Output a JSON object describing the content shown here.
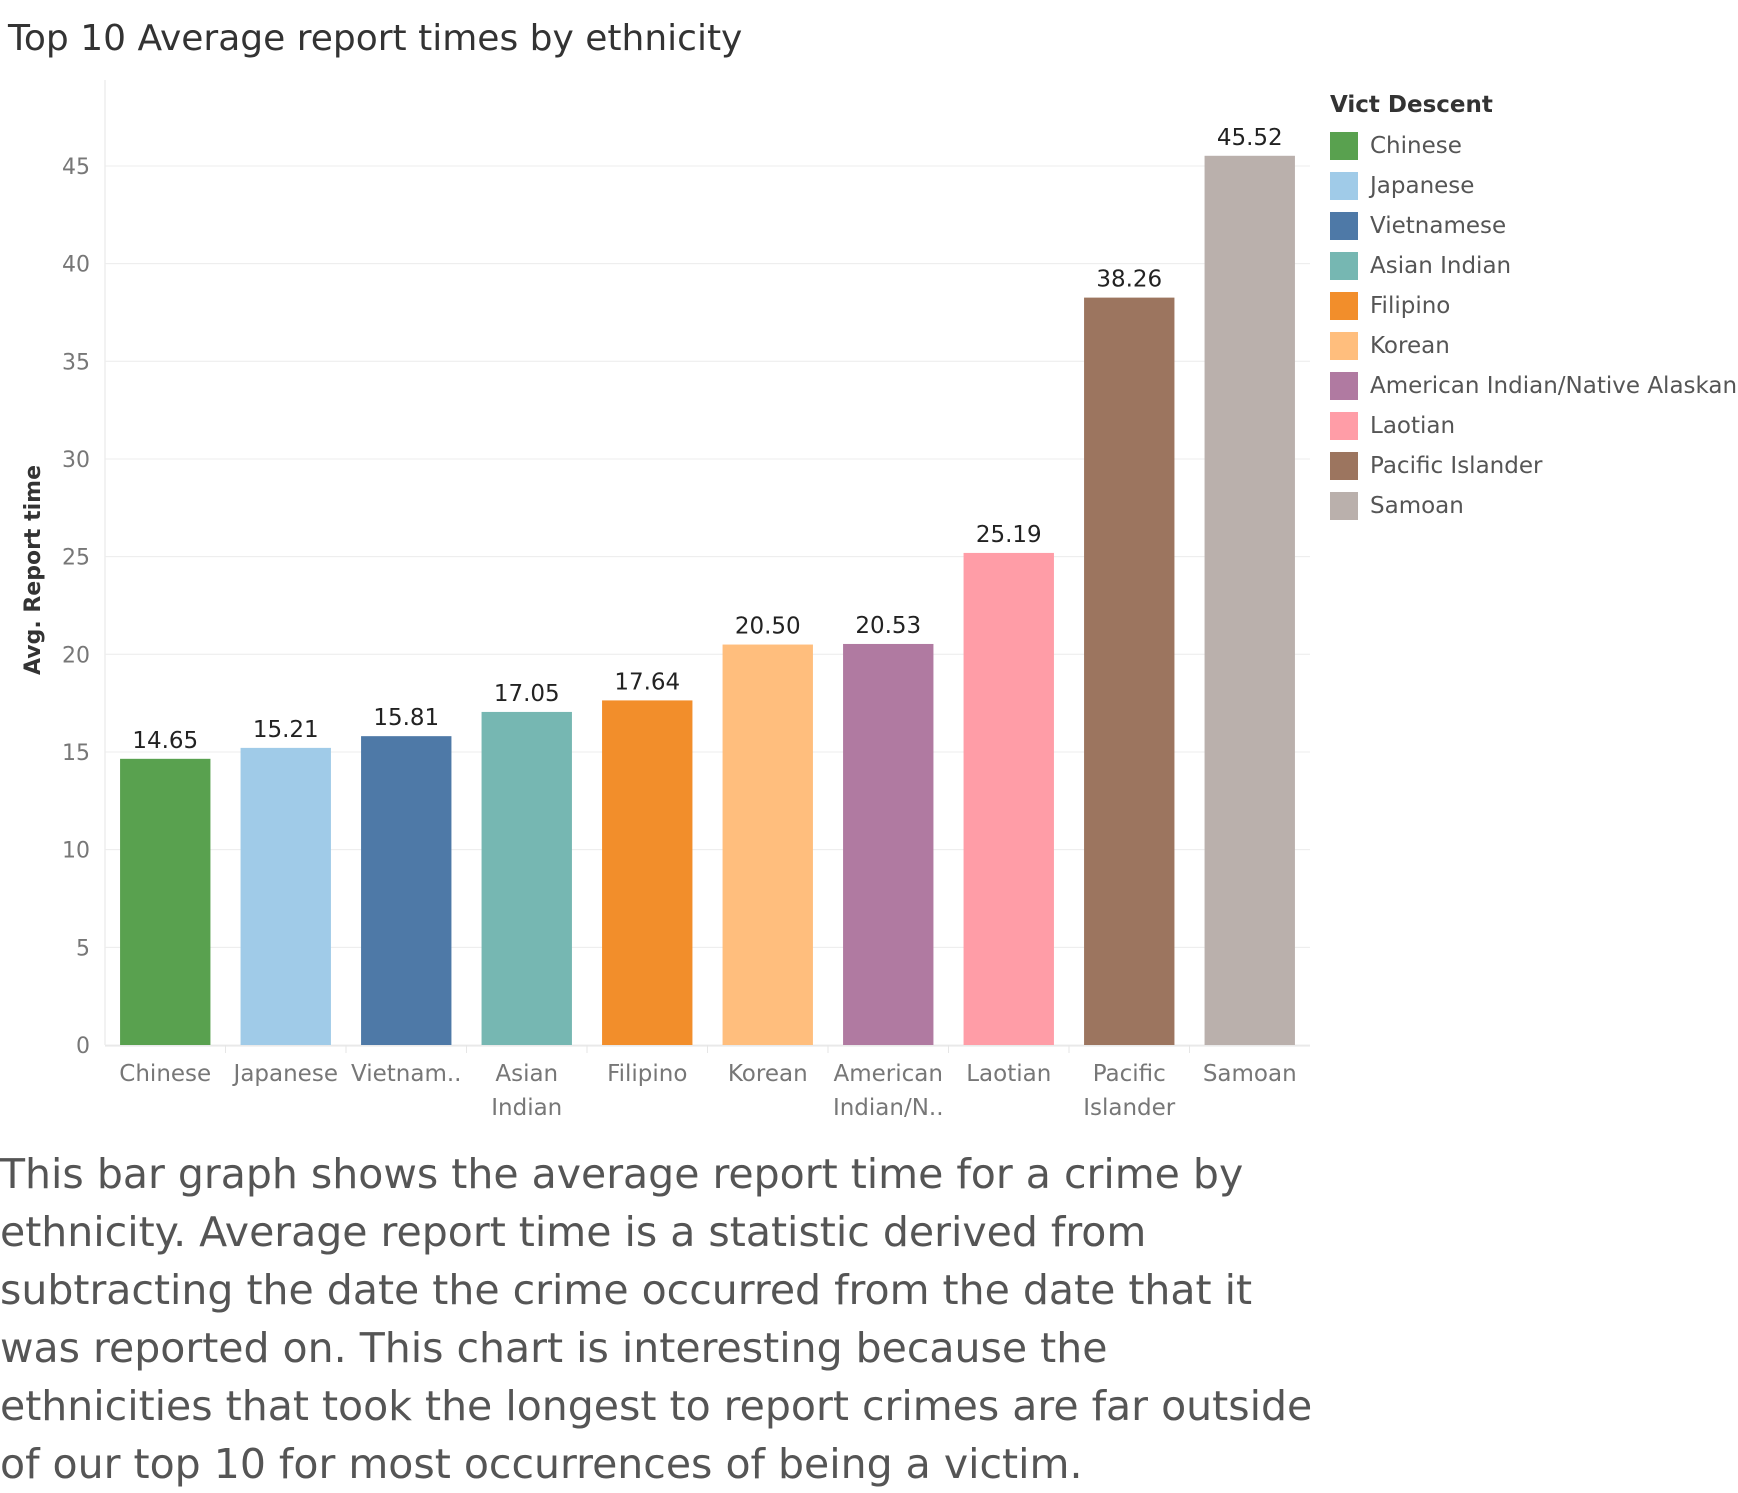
{
  "title": "Top 10 Average report times by ethnicity",
  "caption": "This bar graph shows the average report time for a crime by ethnicity. Average report time is a statistic derived from subtracting the date the crime occurred from the date that it was reported on. This chart is interesting because the ethnicities that took the longest to report crimes are far outside of our top 10 for most occurrences of being a victim.",
  "legend": {
    "title": "Vict Descent",
    "items": [
      {
        "label": "Chinese",
        "color": "#59a14f"
      },
      {
        "label": "Japanese",
        "color": "#a0cbe8"
      },
      {
        "label": "Vietnamese",
        "color": "#4e79a7"
      },
      {
        "label": "Asian Indian",
        "color": "#76b7b2"
      },
      {
        "label": "Filipino",
        "color": "#f28e2b"
      },
      {
        "label": "Korean",
        "color": "#ffbe7d"
      },
      {
        "label": "American Indian/Native Alaskan",
        "color": "#b07aa1"
      },
      {
        "label": "Laotian",
        "color": "#ff9da7"
      },
      {
        "label": "Pacific Islander",
        "color": "#9c755f"
      },
      {
        "label": "Samoan",
        "color": "#bab0ac"
      }
    ]
  },
  "chart_data": {
    "type": "bar",
    "title": "Top 10 Average report times by ethnicity",
    "xlabel": "",
    "ylabel": "Avg. Report time",
    "ylim": [
      0,
      49.4
    ],
    "yticks": [
      0,
      5,
      10,
      15,
      20,
      25,
      30,
      35,
      40,
      45
    ],
    "grid": true,
    "legend_position": "right",
    "categories": [
      "Chinese",
      "Japanese",
      "Vietnamese",
      "Asian Indian",
      "Filipino",
      "Korean",
      "American Indian/Native Alaskan",
      "Laotian",
      "Pacific Islander",
      "Samoan"
    ],
    "tick_labels": [
      [
        "Chinese"
      ],
      [
        "Japanese"
      ],
      [
        "Vietnam.."
      ],
      [
        "Asian",
        "Indian"
      ],
      [
        "Filipino"
      ],
      [
        "Korean"
      ],
      [
        "American",
        "Indian/N.."
      ],
      [
        "Laotian"
      ],
      [
        "Pacific",
        "Islander"
      ],
      [
        "Samoan"
      ]
    ],
    "values": [
      14.65,
      15.21,
      15.81,
      17.05,
      17.64,
      20.5,
      20.53,
      25.19,
      38.26,
      45.52
    ],
    "data_labels": [
      "14.65",
      "15.21",
      "15.81",
      "17.05",
      "17.64",
      "20.50",
      "20.53",
      "25.19",
      "38.26",
      "45.52"
    ],
    "colors": [
      "#59a14f",
      "#a0cbe8",
      "#4e79a7",
      "#76b7b2",
      "#f28e2b",
      "#ffbe7d",
      "#b07aa1",
      "#ff9da7",
      "#9c755f",
      "#bab0ac"
    ]
  }
}
